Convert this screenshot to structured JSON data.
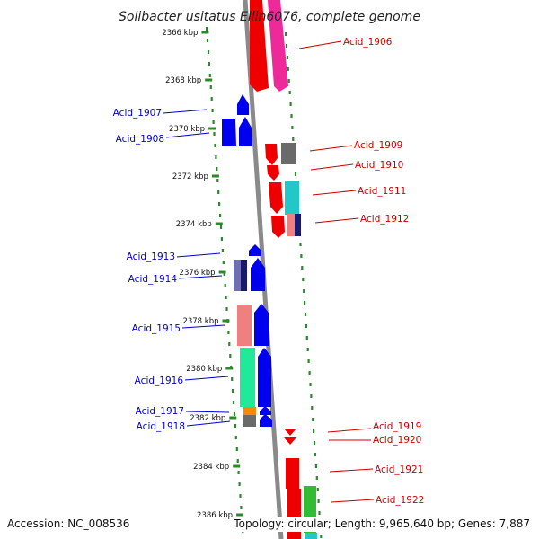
{
  "header": {
    "title": "Solibacter usitatus Ellin6076, complete genome"
  },
  "footer": {
    "accession": "Accession: NC_008536",
    "topology": "Topology: circular; Length: 9,965,640 bp; Genes: 7,887"
  },
  "colors": {
    "forward_label": "#0000cc",
    "reverse_label": "#cc0000",
    "backbone": "#8a8a8a",
    "dots": "#2a8a2a"
  },
  "ticks": [
    {
      "label": "2366 kbp"
    },
    {
      "label": "2368 kbp"
    },
    {
      "label": "2370 kbp"
    },
    {
      "label": "2372 kbp"
    },
    {
      "label": "2374 kbp"
    },
    {
      "label": "2376 kbp"
    },
    {
      "label": "2378 kbp"
    },
    {
      "label": "2380 kbp"
    },
    {
      "label": "2382 kbp"
    },
    {
      "label": "2384 kbp"
    },
    {
      "label": "2386 kbp"
    }
  ],
  "gene_labels": [
    {
      "text": "Acid_1906",
      "strand": "reverse"
    },
    {
      "text": "Acid_1907",
      "strand": "forward"
    },
    {
      "text": "Acid_1908",
      "strand": "forward"
    },
    {
      "text": "Acid_1909",
      "strand": "reverse"
    },
    {
      "text": "Acid_1910",
      "strand": "reverse"
    },
    {
      "text": "Acid_1911",
      "strand": "reverse"
    },
    {
      "text": "Acid_1912",
      "strand": "reverse"
    },
    {
      "text": "Acid_1913",
      "strand": "forward"
    },
    {
      "text": "Acid_1914",
      "strand": "forward"
    },
    {
      "text": "Acid_1915",
      "strand": "forward"
    },
    {
      "text": "Acid_1916",
      "strand": "forward"
    },
    {
      "text": "Acid_1917",
      "strand": "forward"
    },
    {
      "text": "Acid_1918",
      "strand": "forward"
    },
    {
      "text": "Acid_1919",
      "strand": "reverse"
    },
    {
      "text": "Acid_1920",
      "strand": "reverse"
    },
    {
      "text": "Acid_1921",
      "strand": "reverse"
    },
    {
      "text": "Acid_1922",
      "strand": "reverse"
    }
  ]
}
